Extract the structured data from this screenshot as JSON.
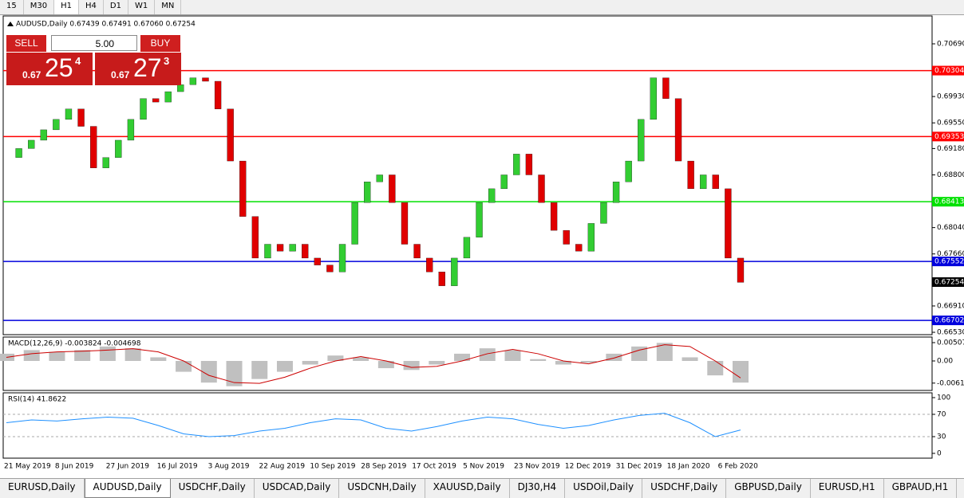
{
  "toolbar": [
    "15",
    "M30",
    "H1",
    "H4",
    "D1",
    "W1",
    "MN"
  ],
  "trade_panel": {
    "sell": "SELL",
    "buy": "BUY",
    "volume": "5.00",
    "sell_price": {
      "prefix": "0.67",
      "big": "25",
      "small": "4"
    },
    "buy_price": {
      "prefix": "0.67",
      "big": "27",
      "small": "3"
    }
  },
  "chart_data": {
    "type": "candlestick",
    "title": "AUDUSD,Daily  0.67439 0.67491 0.67060 0.67254",
    "closes": [
      0.6905,
      0.6918,
      0.693,
      0.6945,
      0.696,
      0.6975,
      0.695,
      0.689,
      0.6905,
      0.693,
      0.696,
      0.699,
      0.6985,
      0.7,
      0.701,
      0.702,
      0.7015,
      0.6975,
      0.69,
      0.682,
      0.676,
      0.678,
      0.677,
      0.678,
      0.676,
      0.675,
      0.674,
      0.678,
      0.684,
      0.687,
      0.688,
      0.684,
      0.678,
      0.676,
      0.674,
      0.672,
      0.676,
      0.679,
      0.684,
      0.686,
      0.688,
      0.691,
      0.688,
      0.684,
      0.68,
      0.678,
      0.677,
      0.681,
      0.684,
      0.687,
      0.69,
      0.696,
      0.702,
      0.699,
      0.69,
      0.686,
      0.688,
      0.686,
      0.676,
      0.6725
    ],
    "ylim": [
      0.66496,
      0.71092
    ],
    "yticks": [
      {
        "value": 0.7069,
        "label": "0.70690"
      },
      {
        "value": 0.6993,
        "label": "0.69930"
      },
      {
        "value": 0.6955,
        "label": "0.69550"
      },
      {
        "value": 0.6918,
        "label": "0.69180"
      },
      {
        "value": 0.688,
        "label": "0.68800"
      },
      {
        "value": 0.6804,
        "label": "0.68040"
      },
      {
        "value": 0.6766,
        "label": "0.67660"
      },
      {
        "value": 0.6691,
        "label": "0.66910"
      },
      {
        "value": 0.6653,
        "label": "0.66530"
      }
    ],
    "levels": [
      {
        "value": 0.70304,
        "color": "#ff0000"
      },
      {
        "value": 0.69353,
        "color": "#ff0000"
      },
      {
        "value": 0.68413,
        "color": "#00e000"
      },
      {
        "value": 0.67552,
        "color": "#0000dd"
      },
      {
        "value": 0.66702,
        "color": "#0000dd"
      }
    ],
    "current_price": 0.67254,
    "x_labels": [
      "21 May 2019",
      "8 Jun 2019",
      "27 Jun 2019",
      "16 Jul 2019",
      "3 Aug 2019",
      "22 Aug 2019",
      "10 Sep 2019",
      "28 Sep 2019",
      "17 Oct 2019",
      "5 Nov 2019",
      "23 Nov 2019",
      "12 Dec 2019",
      "31 Dec 2019",
      "18 Jan 2020",
      "6 Feb 2020"
    ]
  },
  "macd": {
    "label": "MACD(12,26,9) -0.003824 -0.004698",
    "histogram": [
      0.002,
      0.003,
      0.0025,
      0.003,
      0.004,
      0.0035,
      0.001,
      -0.003,
      -0.006,
      -0.007,
      -0.005,
      -0.003,
      -0.001,
      0.0015,
      0.001,
      -0.002,
      -0.0025,
      -0.001,
      0.002,
      0.0035,
      0.003,
      0.0005,
      -0.001,
      -0.0005,
      0.002,
      0.004,
      0.005,
      0.001,
      -0.004,
      -0.006
    ],
    "signal": [
      0.001,
      0.002,
      0.0025,
      0.0027,
      0.003,
      0.0034,
      0.0025,
      0,
      -0.004,
      -0.006,
      -0.0062,
      -0.0045,
      -0.002,
      0,
      0.0012,
      0,
      -0.0018,
      -0.0015,
      0,
      0.002,
      0.0032,
      0.002,
      0,
      -0.0008,
      0.0008,
      0.003,
      0.0045,
      0.004,
      0,
      -0.0047
    ],
    "ylim": [
      -0.00817,
      0.00662
    ],
    "yticks": [
      0.005076,
      {
        "value": 0,
        "label": "0.00"
      },
      -0.00614
    ]
  },
  "rsi": {
    "label": "RSI(14) 41.8622",
    "values": [
      55,
      60,
      58,
      62,
      65,
      63,
      50,
      35,
      30,
      32,
      40,
      45,
      55,
      62,
      60,
      45,
      40,
      48,
      58,
      65,
      62,
      52,
      45,
      50,
      60,
      68,
      72,
      55,
      30,
      42
    ],
    "ylim": [
      -8.6,
      108.6
    ],
    "yticks": [
      100,
      70,
      30,
      0
    ],
    "levels": [
      70,
      30
    ]
  },
  "tabs": [
    "EURUSD,Daily",
    "AUDUSD,Daily",
    "USDCHF,Daily",
    "USDCAD,Daily",
    "USDCNH,Daily",
    "XAUUSD,Daily",
    "DJ30,H4",
    "USDOil,Daily",
    "USDCHF,Daily",
    "GBPUSD,Daily",
    "EURUSD,H1",
    "GBPAUD,H1"
  ]
}
